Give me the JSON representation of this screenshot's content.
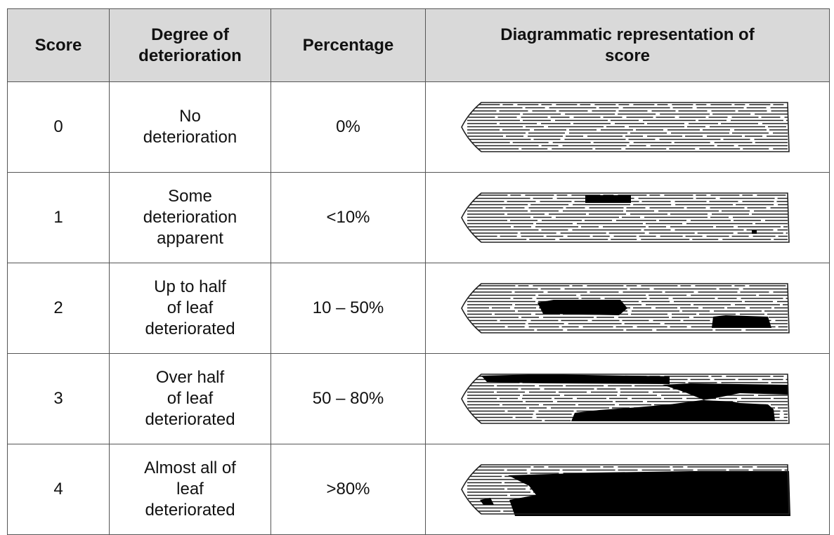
{
  "table": {
    "header": {
      "score": "Score",
      "degree": [
        "Degree of",
        "deterioration"
      ],
      "percentage": "Percentage",
      "diagram": [
        "Diagrammatic representation of",
        "score"
      ]
    },
    "rows": [
      {
        "score": 0,
        "degree": [
          "No",
          "deterioration"
        ],
        "percentage": "0%"
      },
      {
        "score": 1,
        "degree": [
          "Some",
          "deterioration",
          "apparent"
        ],
        "percentage": "<10%"
      },
      {
        "score": 2,
        "degree": [
          "Up to half",
          "of leaf",
          "deteriorated"
        ],
        "percentage": "10 – 50%"
      },
      {
        "score": 3,
        "degree": [
          "Over half",
          "of leaf",
          "deteriorated"
        ],
        "percentage": "50 – 80%"
      },
      {
        "score": 4,
        "degree": [
          "Almost all of",
          "leaf",
          "deteriorated"
        ],
        "percentage": ">80%"
      }
    ]
  }
}
